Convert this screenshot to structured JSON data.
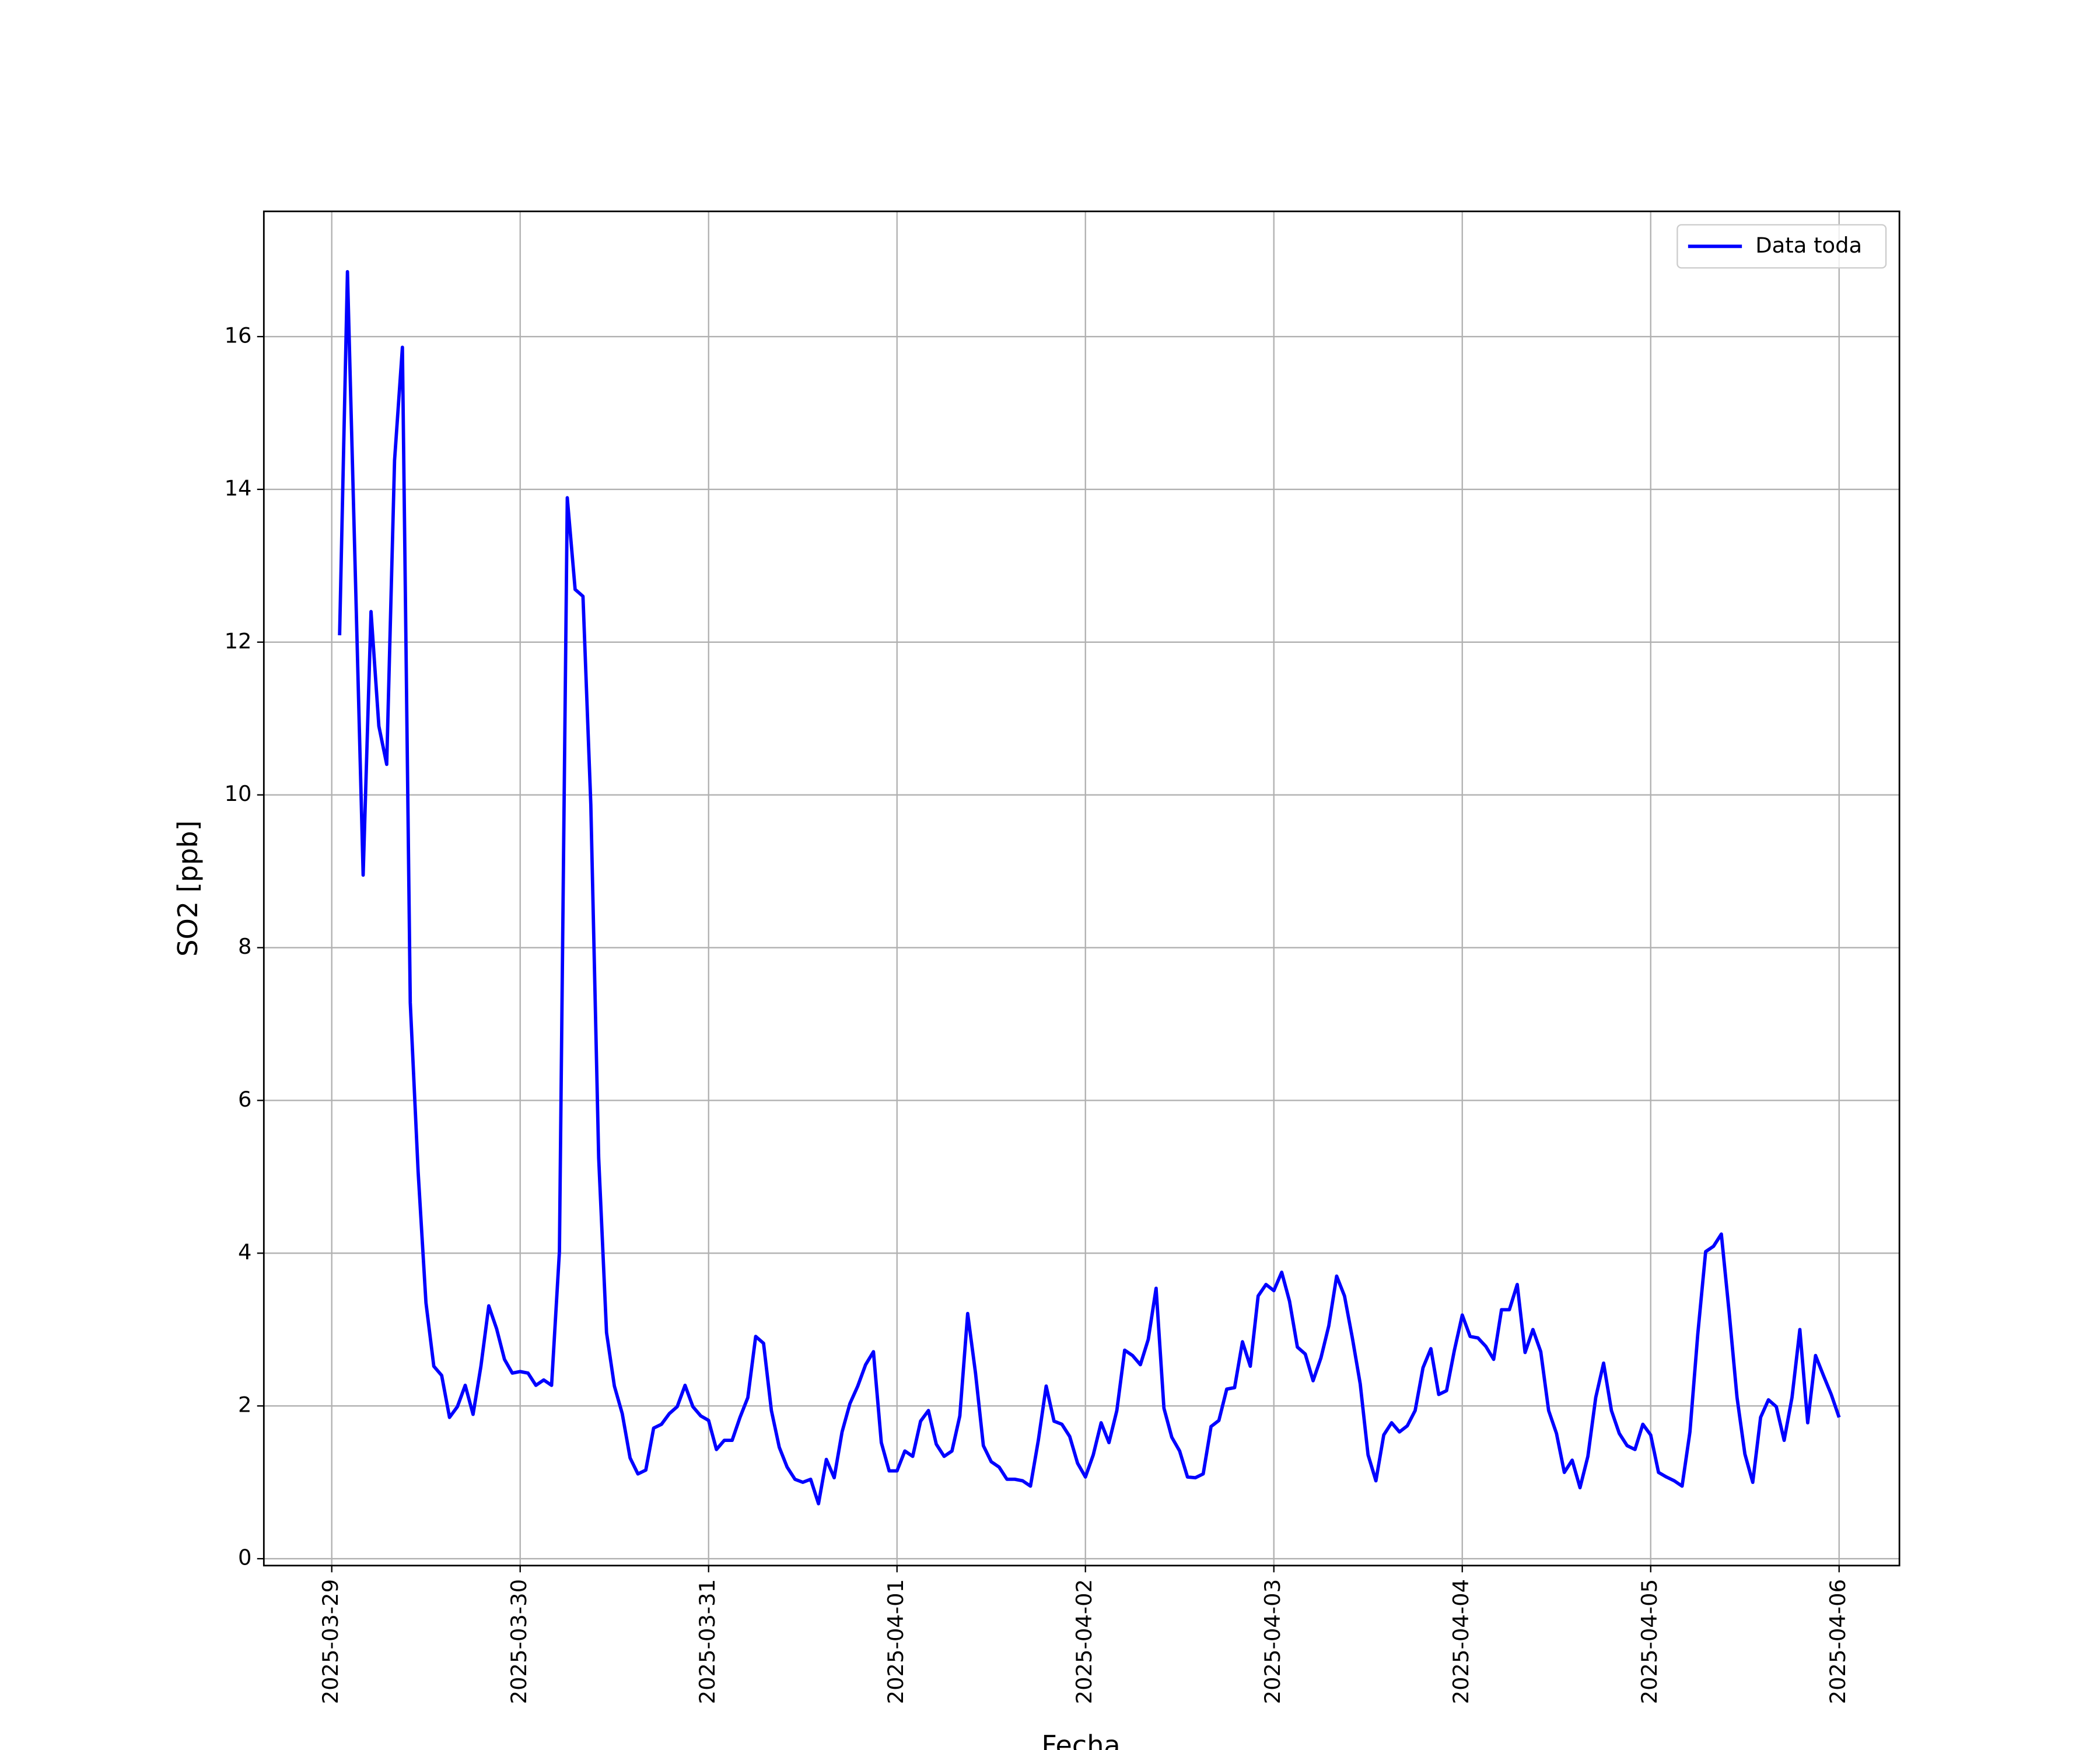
{
  "chart_data": {
    "type": "line",
    "xlabel": "Fecha",
    "ylabel": "SO2 [ppb]",
    "x": [
      "2025-03-29 01:00",
      "2025-03-29 02:00",
      "2025-03-29 03:00",
      "2025-03-29 04:00",
      "2025-03-29 05:00",
      "2025-03-29 06:00",
      "2025-03-29 07:00",
      "2025-03-29 08:00",
      "2025-03-29 09:00",
      "2025-03-29 10:00",
      "2025-03-29 11:00",
      "2025-03-29 12:00",
      "2025-03-29 13:00",
      "2025-03-29 14:00",
      "2025-03-29 15:00",
      "2025-03-29 16:00",
      "2025-03-29 17:00",
      "2025-03-29 18:00",
      "2025-03-29 19:00",
      "2025-03-29 20:00",
      "2025-03-29 21:00",
      "2025-03-29 22:00",
      "2025-03-29 23:00",
      "2025-03-30 00:00",
      "2025-03-30 01:00",
      "2025-03-30 02:00",
      "2025-03-30 03:00",
      "2025-03-30 04:00",
      "2025-03-30 05:00",
      "2025-03-30 06:00",
      "2025-03-30 07:00",
      "2025-03-30 08:00",
      "2025-03-30 09:00",
      "2025-03-30 10:00",
      "2025-03-30 11:00",
      "2025-03-30 12:00",
      "2025-03-30 13:00",
      "2025-03-30 14:00",
      "2025-03-30 15:00",
      "2025-03-30 16:00",
      "2025-03-30 17:00",
      "2025-03-30 18:00",
      "2025-03-30 19:00",
      "2025-03-30 20:00",
      "2025-03-30 21:00",
      "2025-03-30 22:00",
      "2025-03-30 23:00",
      "2025-03-31 00:00",
      "2025-03-31 01:00",
      "2025-03-31 02:00",
      "2025-03-31 03:00",
      "2025-03-31 04:00",
      "2025-03-31 05:00",
      "2025-03-31 06:00",
      "2025-03-31 07:00",
      "2025-03-31 08:00",
      "2025-03-31 09:00",
      "2025-03-31 10:00",
      "2025-03-31 11:00",
      "2025-03-31 12:00",
      "2025-03-31 13:00",
      "2025-03-31 14:00",
      "2025-03-31 15:00",
      "2025-03-31 16:00",
      "2025-03-31 17:00",
      "2025-03-31 18:00",
      "2025-03-31 19:00",
      "2025-03-31 20:00",
      "2025-03-31 21:00",
      "2025-03-31 22:00",
      "2025-03-31 23:00",
      "2025-04-01 00:00",
      "2025-04-01 01:00",
      "2025-04-01 02:00",
      "2025-04-01 03:00",
      "2025-04-01 04:00",
      "2025-04-01 05:00",
      "2025-04-01 06:00",
      "2025-04-01 07:00",
      "2025-04-01 08:00",
      "2025-04-01 09:00",
      "2025-04-01 10:00",
      "2025-04-01 11:00",
      "2025-04-01 12:00",
      "2025-04-01 13:00",
      "2025-04-01 14:00",
      "2025-04-01 15:00",
      "2025-04-01 16:00",
      "2025-04-01 17:00",
      "2025-04-01 18:00",
      "2025-04-01 19:00",
      "2025-04-01 20:00",
      "2025-04-01 21:00",
      "2025-04-01 22:00",
      "2025-04-01 23:00",
      "2025-04-02 00:00",
      "2025-04-02 01:00",
      "2025-04-02 02:00",
      "2025-04-02 03:00",
      "2025-04-02 04:00",
      "2025-04-02 05:00",
      "2025-04-02 06:00",
      "2025-04-02 07:00",
      "2025-04-02 08:00",
      "2025-04-02 09:00",
      "2025-04-02 10:00",
      "2025-04-02 11:00",
      "2025-04-02 12:00",
      "2025-04-02 13:00",
      "2025-04-02 14:00",
      "2025-04-02 15:00",
      "2025-04-02 16:00",
      "2025-04-02 17:00",
      "2025-04-02 18:00",
      "2025-04-02 19:00",
      "2025-04-02 20:00",
      "2025-04-02 21:00",
      "2025-04-02 22:00",
      "2025-04-02 23:00",
      "2025-04-03 00:00",
      "2025-04-03 01:00",
      "2025-04-03 02:00",
      "2025-04-03 03:00",
      "2025-04-03 04:00",
      "2025-04-03 05:00",
      "2025-04-03 06:00",
      "2025-04-03 07:00",
      "2025-04-03 08:00",
      "2025-04-03 09:00",
      "2025-04-03 10:00",
      "2025-04-03 11:00",
      "2025-04-03 12:00",
      "2025-04-03 13:00",
      "2025-04-03 14:00",
      "2025-04-03 15:00",
      "2025-04-03 16:00",
      "2025-04-03 17:00",
      "2025-04-03 18:00",
      "2025-04-03 19:00",
      "2025-04-03 20:00",
      "2025-04-03 21:00",
      "2025-04-03 22:00",
      "2025-04-03 23:00",
      "2025-04-04 00:00",
      "2025-04-04 01:00",
      "2025-04-04 02:00",
      "2025-04-04 03:00",
      "2025-04-04 04:00",
      "2025-04-04 05:00",
      "2025-04-04 06:00",
      "2025-04-04 07:00",
      "2025-04-04 08:00",
      "2025-04-04 09:00",
      "2025-04-04 10:00",
      "2025-04-04 11:00",
      "2025-04-04 12:00",
      "2025-04-04 13:00",
      "2025-04-04 14:00",
      "2025-04-04 15:00",
      "2025-04-04 16:00",
      "2025-04-04 17:00",
      "2025-04-04 18:00",
      "2025-04-04 19:00",
      "2025-04-04 20:00",
      "2025-04-04 21:00",
      "2025-04-04 22:00",
      "2025-04-04 23:00",
      "2025-04-05 00:00",
      "2025-04-05 01:00",
      "2025-04-05 02:00",
      "2025-04-05 03:00",
      "2025-04-05 04:00",
      "2025-04-05 05:00",
      "2025-04-05 06:00",
      "2025-04-05 07:00",
      "2025-04-05 08:00",
      "2025-04-05 09:00",
      "2025-04-05 10:00",
      "2025-04-05 11:00",
      "2025-04-05 12:00",
      "2025-04-05 13:00",
      "2025-04-05 14:00",
      "2025-04-05 15:00",
      "2025-04-05 16:00",
      "2025-04-05 17:00",
      "2025-04-05 18:00",
      "2025-04-05 19:00",
      "2025-04-05 20:00",
      "2025-04-05 21:00",
      "2025-04-05 22:00",
      "2025-04-05 23:00",
      "2025-04-06 00:00"
    ],
    "series": [
      {
        "name": "Data toda",
        "color": "#0000ff",
        "values": [
          12.09,
          16.85,
          12.9,
          8.95,
          12.4,
          10.9,
          10.4,
          14.38,
          15.86,
          7.28,
          5.07,
          3.35,
          2.52,
          2.4,
          1.85,
          1.99,
          2.27,
          1.89,
          2.52,
          3.31,
          3.01,
          2.61,
          2.43,
          2.45,
          2.43,
          2.27,
          2.34,
          2.27,
          4.02,
          13.89,
          12.69,
          12.6,
          9.87,
          5.25,
          2.96,
          2.26,
          1.9,
          1.32,
          1.11,
          1.16,
          1.71,
          1.76,
          1.9,
          1.99,
          2.27,
          1.99,
          1.87,
          1.81,
          1.43,
          1.55,
          1.55,
          1.85,
          2.11,
          2.91,
          2.82,
          1.94,
          1.46,
          1.2,
          1.04,
          1.0,
          1.04,
          0.72,
          1.3,
          1.06,
          1.66,
          2.03,
          2.26,
          2.54,
          2.71,
          1.52,
          1.15,
          1.15,
          1.41,
          1.34,
          1.8,
          1.94,
          1.5,
          1.34,
          1.41,
          1.87,
          3.21,
          2.43,
          1.48,
          1.27,
          1.2,
          1.04,
          1.04,
          1.02,
          0.95,
          1.55,
          2.26,
          1.8,
          1.76,
          1.6,
          1.25,
          1.07,
          1.36,
          1.78,
          1.52,
          1.94,
          2.73,
          2.66,
          2.54,
          2.87,
          3.54,
          1.97,
          1.59,
          1.41,
          1.07,
          1.06,
          1.11,
          1.73,
          1.81,
          2.22,
          2.24,
          2.84,
          2.52,
          3.44,
          3.59,
          3.51,
          3.75,
          3.37,
          2.77,
          2.68,
          2.33,
          2.63,
          3.05,
          3.7,
          3.44,
          2.89,
          2.29,
          1.36,
          1.02,
          1.62,
          1.78,
          1.66,
          1.74,
          1.94,
          2.5,
          2.75,
          2.15,
          2.2,
          2.73,
          3.19,
          2.91,
          2.89,
          2.78,
          2.61,
          3.26,
          3.26,
          3.59,
          2.7,
          3.0,
          2.71,
          1.94,
          1.64,
          1.13,
          1.29,
          0.93,
          1.34,
          2.11,
          2.56,
          1.94,
          1.64,
          1.48,
          1.43,
          1.76,
          1.62,
          1.13,
          1.07,
          1.02,
          0.95,
          1.66,
          2.94,
          4.02,
          4.09,
          4.25,
          3.22,
          2.11,
          1.37,
          1.0,
          1.85,
          2.08,
          1.99,
          1.55,
          2.11,
          3.0,
          1.78,
          2.66,
          2.4,
          2.15,
          1.85
        ]
      }
    ],
    "xlim": [
      "2025-03-28 15:21",
      "2025-04-06 07:41"
    ],
    "xticks": [
      "2025-03-29",
      "2025-03-30",
      "2025-03-31",
      "2025-04-01",
      "2025-04-02",
      "2025-04-03",
      "2025-04-04",
      "2025-04-05",
      "2025-04-06"
    ],
    "ylim": [
      -0.09,
      17.64
    ],
    "yticks": [
      0,
      2,
      4,
      6,
      8,
      10,
      12,
      14,
      16
    ],
    "grid": true,
    "legend": "upper right"
  }
}
